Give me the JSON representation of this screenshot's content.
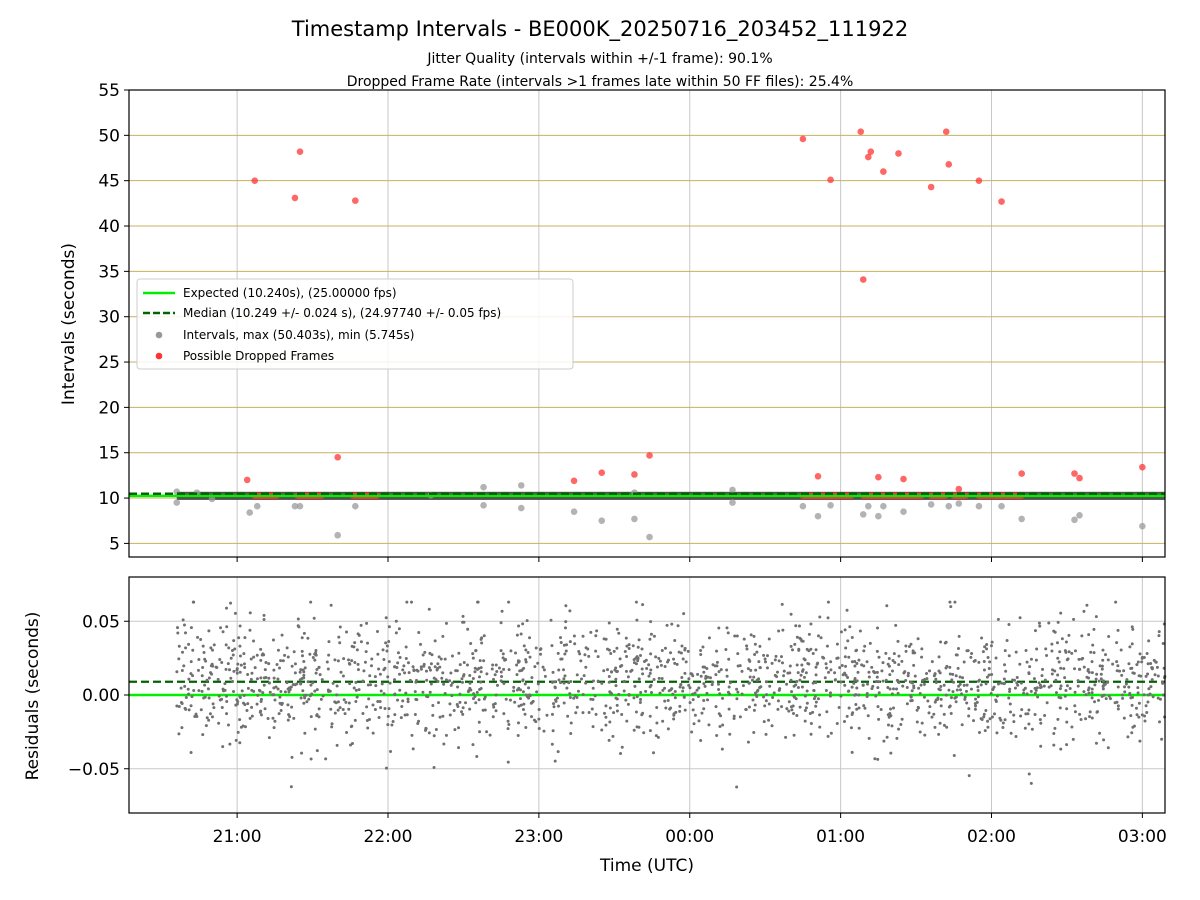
{
  "title": "Timestamp Intervals - BE000K_20250716_203452_111922",
  "subtitle_1": "Jitter Quality (intervals within +/-1 frame): 90.1%",
  "subtitle_2": "Dropped Frame Rate (intervals >1 frames late within 50 FF files): 25.4%",
  "colors": {
    "expected": "#00ee00",
    "median": "#006400",
    "intervals": "#999999",
    "dropped": "#ff3333",
    "residual_points": "#707070",
    "hgrid_top": "#c8b060",
    "grid": "#c8c8c8"
  },
  "chart_data": [
    {
      "type": "scatter",
      "panel": "top",
      "ylabel": "Intervals (seconds)",
      "ylim": [
        3.5,
        55
      ],
      "yticks": [
        5,
        10,
        15,
        20,
        25,
        30,
        35,
        40,
        45,
        50,
        55
      ],
      "xlim": [
        "20:17",
        "03:09"
      ],
      "xticks": [
        "21:00",
        "22:00",
        "23:00",
        "00:00",
        "01:00",
        "02:00",
        "03:00"
      ],
      "grid": true,
      "legend_position": "center-left",
      "expected_value": 10.24,
      "median_value": 10.249,
      "legend": [
        {
          "label": "Expected (10.240s), (25.00000 fps)",
          "style": "solid-line"
        },
        {
          "label": "Median (10.249 +/- 0.024 s), (24.97740 +/- 0.05 fps)",
          "style": "dashed-line"
        },
        {
          "label": "Intervals, max (50.403s), min (5.745s)",
          "style": "gray-marker"
        },
        {
          "label": "Possible Dropped Frames",
          "style": "red-marker"
        }
      ],
      "series": [
        {
          "name": "Possible Dropped Frames",
          "points": [
            [
              "21:04",
              12.0
            ],
            [
              "21:07",
              45.0
            ],
            [
              "21:23",
              43.1
            ],
            [
              "21:25",
              48.2
            ],
            [
              "21:40",
              14.5
            ],
            [
              "21:47",
              42.8
            ],
            [
              "23:14",
              11.9
            ],
            [
              "23:25",
              12.8
            ],
            [
              "23:38",
              12.6
            ],
            [
              "23:44",
              14.7
            ],
            [
              "00:45",
              49.6
            ],
            [
              "00:51",
              12.4
            ],
            [
              "00:56",
              45.1
            ],
            [
              "01:08",
              50.4
            ],
            [
              "01:09",
              34.1
            ],
            [
              "01:11",
              47.6
            ],
            [
              "01:12",
              48.2
            ],
            [
              "01:15",
              12.3
            ],
            [
              "01:17",
              46.0
            ],
            [
              "01:23",
              48.0
            ],
            [
              "01:25",
              12.1
            ],
            [
              "01:36",
              44.3
            ],
            [
              "01:42",
              50.4
            ],
            [
              "01:43",
              46.8
            ],
            [
              "01:47",
              11.0
            ],
            [
              "01:55",
              45.0
            ],
            [
              "02:04",
              42.7
            ],
            [
              "02:12",
              12.7
            ],
            [
              "02:33",
              12.7
            ],
            [
              "02:35",
              12.2
            ],
            [
              "03:00",
              13.4
            ]
          ],
          "clusters": [
            [
              "21:07",
              "21:16"
            ],
            [
              "21:24",
              "21:34"
            ],
            [
              "21:46",
              "21:56"
            ],
            [
              "00:45",
              "01:05"
            ],
            [
              "01:09",
              "01:33"
            ],
            [
              "01:36",
              "01:42"
            ],
            [
              "01:45",
              "01:50"
            ],
            [
              "01:55",
              "02:12"
            ]
          ],
          "cluster_value": 10.25
        },
        {
          "name": "Intervals",
          "points": [
            [
              "20:36",
              10.7
            ],
            [
              "20:36",
              9.5
            ],
            [
              "20:44",
              10.6
            ],
            [
              "20:50",
              9.9
            ],
            [
              "21:05",
              8.4
            ],
            [
              "21:08",
              9.1
            ],
            [
              "21:23",
              9.1
            ],
            [
              "21:25",
              9.1
            ],
            [
              "21:40",
              5.9
            ],
            [
              "21:47",
              9.1
            ],
            [
              "22:17",
              10.3
            ],
            [
              "22:38",
              11.2
            ],
            [
              "22:38",
              9.2
            ],
            [
              "22:53",
              11.4
            ],
            [
              "22:53",
              8.9
            ],
            [
              "23:14",
              8.5
            ],
            [
              "23:25",
              7.5
            ],
            [
              "23:38",
              10.6
            ],
            [
              "23:38",
              7.7
            ],
            [
              "23:44",
              5.7
            ],
            [
              "00:17",
              10.9
            ],
            [
              "00:17",
              9.5
            ],
            [
              "00:45",
              9.1
            ],
            [
              "00:51",
              8.0
            ],
            [
              "00:56",
              9.2
            ],
            [
              "01:09",
              8.2
            ],
            [
              "01:11",
              9.1
            ],
            [
              "01:15",
              8.0
            ],
            [
              "01:17",
              9.1
            ],
            [
              "01:25",
              8.5
            ],
            [
              "01:36",
              9.3
            ],
            [
              "01:43",
              9.1
            ],
            [
              "01:47",
              9.4
            ],
            [
              "01:55",
              9.1
            ],
            [
              "02:04",
              9.1
            ],
            [
              "02:12",
              7.7
            ],
            [
              "02:33",
              7.6
            ],
            [
              "02:35",
              8.1
            ],
            [
              "03:00",
              6.9
            ]
          ],
          "band_range": [
            "20:36",
            "03:09"
          ],
          "band_value": 10.24
        }
      ]
    },
    {
      "type": "scatter",
      "panel": "bottom",
      "xlabel": "Time (UTC)",
      "ylabel": "Residuals (seconds)",
      "ylim": [
        -0.08,
        0.08
      ],
      "yticks": [
        "0.05",
        "0.00",
        "−0.05"
      ],
      "ytick_values": [
        0.05,
        0.0,
        -0.05
      ],
      "xlim": [
        "20:17",
        "03:09"
      ],
      "xticks": [
        "21:00",
        "22:00",
        "23:00",
        "00:00",
        "01:00",
        "02:00",
        "03:00"
      ],
      "grid": true,
      "expected_value": 0.0,
      "median_value": 0.009,
      "series": [
        {
          "name": "Residuals",
          "x_range": [
            "20:36",
            "03:09"
          ],
          "count": 1900,
          "mean": 0.009,
          "std": 0.021,
          "min": -0.075,
          "max": 0.063
        }
      ]
    }
  ]
}
